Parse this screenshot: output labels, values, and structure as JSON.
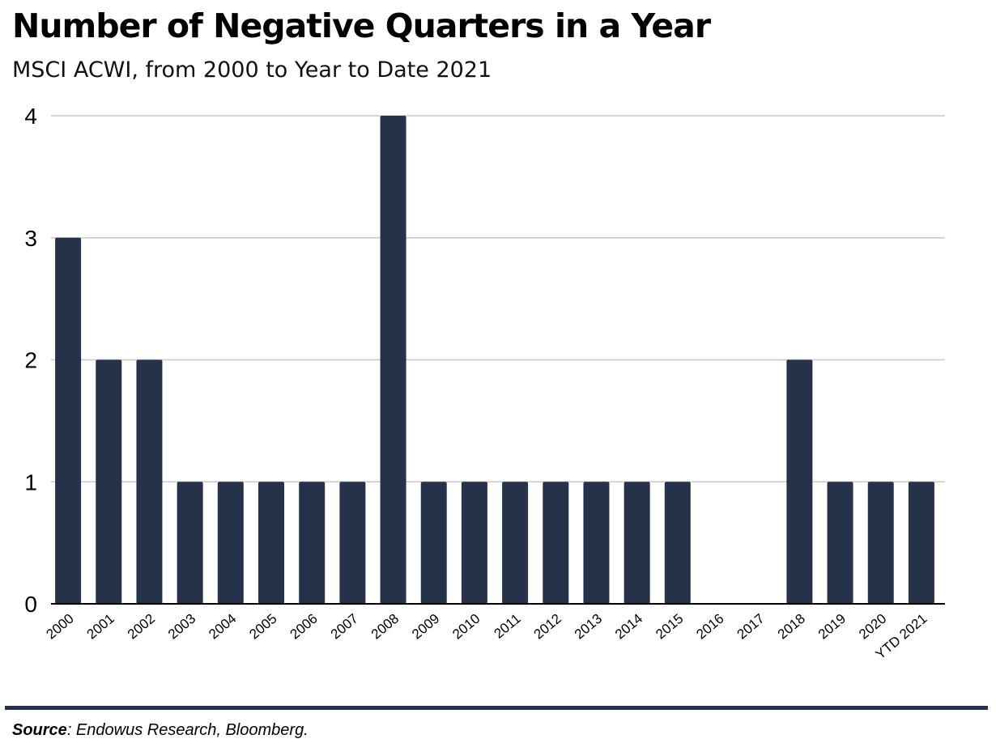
{
  "colors": {
    "bar": "#25324a",
    "grid": "#c8c8c8",
    "axis": "#000000",
    "rule": "#26324a"
  },
  "chart_data": {
    "type": "bar",
    "title": "Number of Negative Quarters in a Year",
    "subtitle": "MSCI ACWI, from 2000 to Year to Date 2021",
    "categories": [
      "2000",
      "2001",
      "2002",
      "2003",
      "2004",
      "2005",
      "2006",
      "2007",
      "2008",
      "2009",
      "2010",
      "2011",
      "2012",
      "2013",
      "2014",
      "2015",
      "2016",
      "2017",
      "2018",
      "2019",
      "2020",
      "YTD 2021"
    ],
    "values": [
      3,
      2,
      2,
      1,
      1,
      1,
      1,
      1,
      4,
      1,
      1,
      1,
      1,
      1,
      1,
      1,
      0,
      0,
      2,
      1,
      1,
      1
    ],
    "xlabel": "",
    "ylabel": "",
    "ylim": [
      0,
      4
    ],
    "yticks": [
      0,
      1,
      2,
      3,
      4
    ],
    "grid": true,
    "legend": "none"
  },
  "source": {
    "label": "Source",
    "text": ": Endowus Research, Bloomberg."
  }
}
